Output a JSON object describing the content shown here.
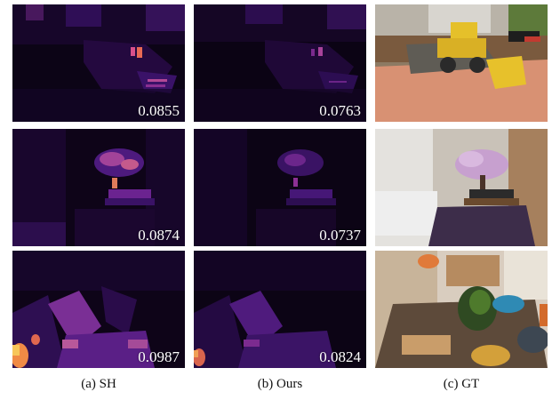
{
  "captions": {
    "sh": "(a) SH",
    "ours": "(b) Ours",
    "gt": "(c) GT"
  },
  "rows": [
    {
      "scene": "kitchen lego bulldozer",
      "sh_error": "0.0855",
      "ours_error": "0.0763"
    },
    {
      "scene": "bonsai",
      "sh_error": "0.0874",
      "ours_error": "0.0737"
    },
    {
      "scene": "counter with plant",
      "sh_error": "0.0987",
      "ours_error": "0.0824"
    }
  ],
  "colors": {
    "heatmap_background": "#0d0419",
    "heatmap_mid": "#5b1f8a",
    "heatmap_hot": "#f6a96a"
  }
}
